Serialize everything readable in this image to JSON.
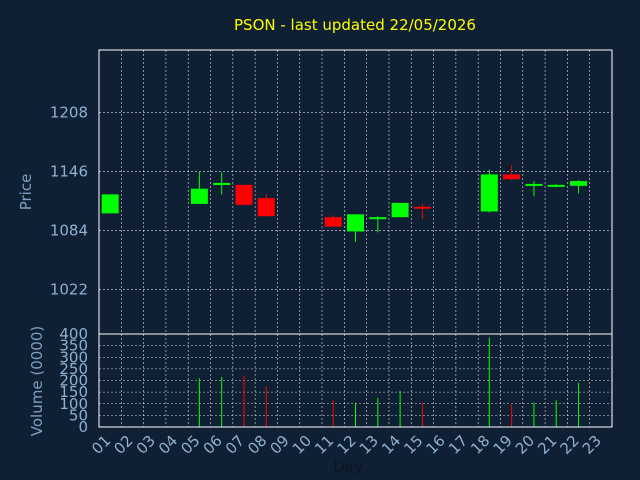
{
  "chart_data": {
    "type": "candlestick",
    "title": "PSON - last updated 22/05/2026",
    "xlabel": "Day",
    "ylabel": "Price",
    "volume_label": "Volume (0000)",
    "x_ticks": [
      "01",
      "02",
      "03",
      "04",
      "05",
      "06",
      "07",
      "08",
      "09",
      "10",
      "11",
      "12",
      "13",
      "14",
      "15",
      "16",
      "17",
      "18",
      "19",
      "20",
      "21",
      "22",
      "23"
    ],
    "price_ticks": [
      1022,
      1084,
      1146,
      1208
    ],
    "price_range": [
      975,
      1274
    ],
    "volume_ticks": [
      0,
      50,
      100,
      150,
      200,
      250,
      300,
      350,
      400
    ],
    "volume_range": [
      0,
      400
    ],
    "grid": true,
    "up_color": "#00ff00",
    "down_color": "#ff0000",
    "candles": [
      {
        "day": "01",
        "open": 1102,
        "close": 1122,
        "high": 1122,
        "low": 1102,
        "volume": 0
      },
      {
        "day": "05",
        "open": 1112,
        "close": 1128,
        "high": 1146,
        "low": 1112,
        "volume": 210
      },
      {
        "day": "06",
        "open": 1133,
        "close": 1134,
        "high": 1145,
        "low": 1122,
        "volume": 215
      },
      {
        "day": "07",
        "open": 1132,
        "close": 1111,
        "high": 1132,
        "low": 1111,
        "volume": 220
      },
      {
        "day": "08",
        "open": 1118,
        "close": 1099,
        "high": 1122,
        "low": 1099,
        "volume": 175
      },
      {
        "day": "11",
        "open": 1098,
        "close": 1088,
        "high": 1100,
        "low": 1088,
        "volume": 115
      },
      {
        "day": "12",
        "open": 1083,
        "close": 1101,
        "high": 1101,
        "low": 1072,
        "volume": 105
      },
      {
        "day": "13",
        "open": 1097,
        "close": 1098,
        "high": 1099,
        "low": 1082,
        "volume": 125
      },
      {
        "day": "14",
        "open": 1098,
        "close": 1113,
        "high": 1113,
        "low": 1098,
        "volume": 155
      },
      {
        "day": "15",
        "open": 1109,
        "close": 1108,
        "high": 1112,
        "low": 1096,
        "volume": 105
      },
      {
        "day": "18",
        "open": 1104,
        "close": 1143,
        "high": 1148,
        "low": 1103,
        "volume": 385
      },
      {
        "day": "19",
        "open": 1143,
        "close": 1138,
        "high": 1153,
        "low": 1137,
        "volume": 100
      },
      {
        "day": "20",
        "open": 1131,
        "close": 1133,
        "high": 1136,
        "low": 1120,
        "volume": 105
      },
      {
        "day": "21",
        "open": 1131,
        "close": 1132,
        "high": 1133,
        "low": 1130,
        "volume": 115
      },
      {
        "day": "22",
        "open": 1131,
        "close": 1136,
        "high": 1137,
        "low": 1123,
        "volume": 190
      }
    ]
  }
}
